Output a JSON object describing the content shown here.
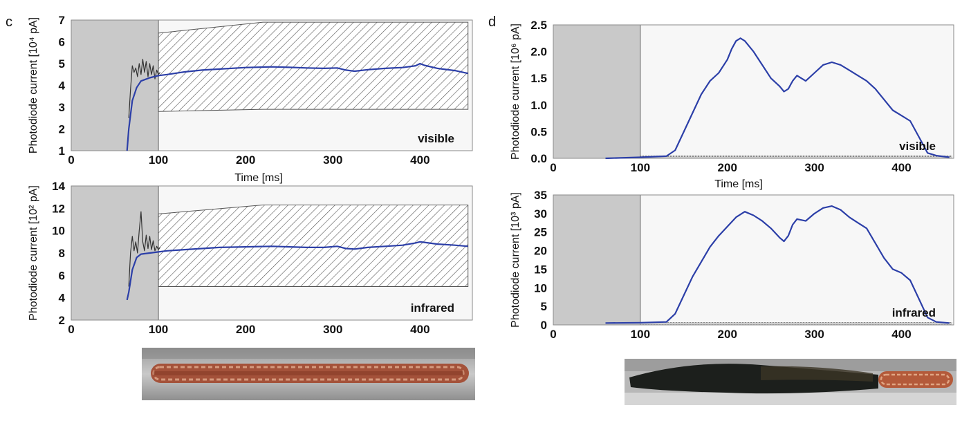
{
  "panels": [
    {
      "letter": "c",
      "xlabel_top": "Time [ms]"
    },
    {
      "letter": "d",
      "xlabel_top": "Time [ms]"
    }
  ],
  "chart_data": [
    {
      "id": "c-visible",
      "type": "line",
      "title": "",
      "xlabel": "Time [ms]",
      "ylabel": "Photodiode current [10⁴ pA]",
      "annotation": "visible",
      "xlim": [
        0,
        460
      ],
      "ylim": [
        1,
        7
      ],
      "xticks": [
        0,
        100,
        200,
        300,
        400
      ],
      "yticks": [
        1,
        2,
        3,
        4,
        5,
        6,
        7
      ],
      "shaded_region_x": [
        0,
        100
      ],
      "tolerance_band": {
        "x": [
          100,
          220,
          455
        ],
        "upper": [
          6.4,
          6.9,
          6.9
        ],
        "lower": [
          2.8,
          2.9,
          2.9
        ]
      },
      "series": [
        {
          "color": "#2c3fa8",
          "x": [
            64,
            66,
            70,
            75,
            80,
            90,
            100,
            110,
            130,
            150,
            170,
            200,
            230,
            250,
            270,
            290,
            305,
            315,
            325,
            340,
            360,
            380,
            395,
            400,
            405,
            420,
            440,
            455
          ],
          "y": [
            1.0,
            2.0,
            3.3,
            3.9,
            4.2,
            4.35,
            4.45,
            4.5,
            4.62,
            4.7,
            4.75,
            4.82,
            4.85,
            4.83,
            4.8,
            4.78,
            4.8,
            4.7,
            4.65,
            4.72,
            4.78,
            4.82,
            4.9,
            5.0,
            4.92,
            4.78,
            4.68,
            4.55
          ]
        },
        {
          "color": "#333333",
          "x": [
            66,
            68,
            70,
            72,
            74,
            76,
            78,
            80,
            82,
            84,
            86,
            88,
            90,
            92,
            94,
            96,
            98,
            100,
            102
          ],
          "y": [
            2.5,
            3.8,
            4.9,
            4.6,
            4.8,
            4.4,
            5.0,
            4.5,
            5.2,
            4.6,
            5.1,
            4.4,
            5.0,
            4.5,
            4.9,
            4.3,
            4.7,
            4.5,
            4.6
          ]
        }
      ]
    },
    {
      "id": "c-infrared",
      "type": "line",
      "title": "",
      "xlabel": "",
      "ylabel": "Photodiode current [10² pA]",
      "annotation": "infrared",
      "xlim": [
        0,
        460
      ],
      "ylim": [
        2,
        14
      ],
      "xticks": [
        0,
        100,
        200,
        300,
        400
      ],
      "yticks": [
        2,
        4,
        6,
        8,
        10,
        12,
        14
      ],
      "shaded_region_x": [
        0,
        100
      ],
      "tolerance_band": {
        "x": [
          100,
          220,
          455
        ],
        "upper": [
          11.5,
          12.3,
          12.3
        ],
        "lower": [
          5.0,
          5.0,
          5.0
        ]
      },
      "series": [
        {
          "color": "#2c3fa8",
          "x": [
            64,
            66,
            70,
            75,
            80,
            90,
            100,
            110,
            130,
            150,
            170,
            200,
            230,
            250,
            270,
            290,
            305,
            315,
            325,
            340,
            360,
            380,
            395,
            400,
            405,
            420,
            440,
            455
          ],
          "y": [
            3.8,
            4.5,
            6.5,
            7.6,
            7.9,
            8.0,
            8.1,
            8.2,
            8.3,
            8.4,
            8.5,
            8.55,
            8.6,
            8.55,
            8.5,
            8.5,
            8.6,
            8.4,
            8.35,
            8.5,
            8.6,
            8.7,
            8.9,
            9.0,
            8.95,
            8.8,
            8.7,
            8.6
          ]
        },
        {
          "color": "#333333",
          "x": [
            66,
            68,
            70,
            72,
            74,
            76,
            78,
            80,
            82,
            84,
            86,
            88,
            90,
            92,
            94,
            96,
            98,
            100,
            102
          ],
          "y": [
            5.0,
            8.0,
            9.5,
            8.2,
            9.0,
            8.0,
            10.0,
            11.7,
            9.0,
            8.2,
            9.6,
            8.4,
            9.5,
            8.3,
            9.1,
            8.2,
            8.6,
            8.3,
            8.5
          ]
        }
      ]
    },
    {
      "id": "d-visible",
      "type": "line",
      "title": "",
      "xlabel": "Time [ms]",
      "ylabel": "Photodiode current [10⁶ pA]",
      "annotation": "visible",
      "xlim": [
        0,
        460
      ],
      "ylim": [
        0,
        2.5
      ],
      "xticks": [
        0,
        100,
        200,
        300,
        400
      ],
      "yticks": [
        0.0,
        0.5,
        1.0,
        1.5,
        2.0,
        2.5
      ],
      "yticklabels": [
        "0.0",
        "0.5",
        "1.0",
        "1.5",
        "2.0",
        "2.5"
      ],
      "shaded_region_x": [
        0,
        100
      ],
      "baseline_band_x": [
        100,
        460
      ],
      "series": [
        {
          "color": "#2c3fa8",
          "x": [
            60,
            100,
            130,
            140,
            150,
            160,
            170,
            180,
            190,
            200,
            205,
            210,
            215,
            220,
            230,
            240,
            250,
            260,
            265,
            270,
            275,
            280,
            290,
            300,
            310,
            320,
            330,
            340,
            350,
            360,
            370,
            380,
            390,
            400,
            410,
            420,
            430,
            440,
            455
          ],
          "y": [
            0.0,
            0.02,
            0.04,
            0.15,
            0.5,
            0.85,
            1.2,
            1.45,
            1.6,
            1.85,
            2.05,
            2.2,
            2.25,
            2.2,
            2.0,
            1.75,
            1.5,
            1.35,
            1.25,
            1.3,
            1.45,
            1.55,
            1.45,
            1.6,
            1.75,
            1.8,
            1.75,
            1.65,
            1.55,
            1.45,
            1.3,
            1.1,
            0.9,
            0.8,
            0.7,
            0.4,
            0.1,
            0.05,
            0.02
          ]
        }
      ]
    },
    {
      "id": "d-infrared",
      "type": "line",
      "title": "",
      "xlabel": "",
      "ylabel": "Photodiode current [10³ pA]",
      "annotation": "infrared",
      "xlim": [
        0,
        460
      ],
      "ylim": [
        0,
        35
      ],
      "xticks": [
        0,
        100,
        200,
        300,
        400
      ],
      "yticks": [
        0,
        5,
        10,
        15,
        20,
        25,
        30,
        35
      ],
      "shaded_region_x": [
        0,
        100
      ],
      "baseline_band_x": [
        100,
        460
      ],
      "series": [
        {
          "color": "#2c3fa8",
          "x": [
            60,
            100,
            130,
            140,
            150,
            160,
            170,
            180,
            190,
            200,
            210,
            220,
            230,
            240,
            250,
            260,
            265,
            270,
            275,
            280,
            290,
            300,
            310,
            320,
            330,
            340,
            350,
            360,
            370,
            380,
            390,
            400,
            410,
            420,
            430,
            440,
            455
          ],
          "y": [
            0.5,
            0.6,
            0.8,
            3.0,
            8.0,
            13.0,
            17.0,
            21.0,
            24.0,
            26.5,
            29.0,
            30.5,
            29.5,
            28.0,
            26.0,
            23.5,
            22.5,
            24.0,
            27.0,
            28.5,
            28.0,
            30.0,
            31.5,
            32.0,
            31.0,
            29.0,
            27.5,
            26.0,
            22.0,
            18.0,
            15.0,
            14.0,
            12.0,
            7.0,
            2.0,
            0.8,
            0.5
          ]
        }
      ]
    }
  ]
}
